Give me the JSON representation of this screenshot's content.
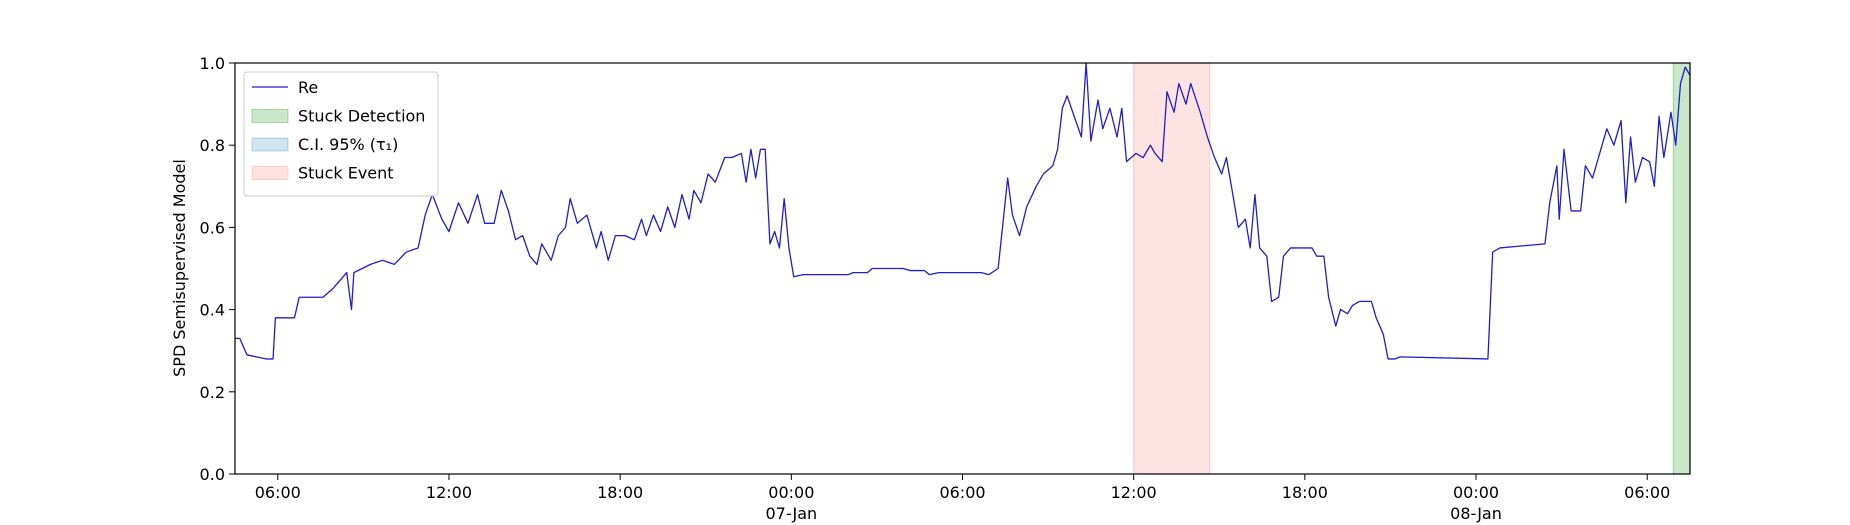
{
  "chart_data": {
    "type": "line",
    "ylabel": "SPD Semisupervised Model",
    "xlim": [
      "1900-01-06 04:30",
      "1900-01-08 07:30"
    ],
    "xticks": [
      {
        "value": "1900-01-06 06:00",
        "label": "06:00"
      },
      {
        "value": "1900-01-06 12:00",
        "label": "12:00"
      },
      {
        "value": "1900-01-06 18:00",
        "label": "18:00"
      },
      {
        "value": "1900-01-07 00:00",
        "label": "00:00\n07-Jan\n1900"
      },
      {
        "value": "1900-01-07 06:00",
        "label": "06:00"
      },
      {
        "value": "1900-01-07 12:00",
        "label": "12:00"
      },
      {
        "value": "1900-01-07 18:00",
        "label": "18:00"
      },
      {
        "value": "1900-01-08 00:00",
        "label": "00:00\n08-Jan"
      },
      {
        "value": "1900-01-08 06:00",
        "label": "06:00"
      }
    ],
    "ylim": [
      0,
      1
    ],
    "yticks": [
      {
        "value": 0,
        "label": "0.0"
      },
      0.2,
      0.4,
      0.6,
      0.8,
      {
        "value": 1,
        "label": "1.0"
      }
    ],
    "legend": "upper left",
    "regions": [
      {
        "name": "Stuck Detection",
        "color": "#2ca02c",
        "alpha": 0.25,
        "spans": [
          [
            "1900-01-08 06:55",
            "1900-01-08 07:30"
          ]
        ]
      },
      {
        "name": "C.I. 95% (τ₁)",
        "color": "#1f77b4",
        "alpha": 0.2,
        "spans": []
      },
      {
        "name": "Stuck Event",
        "color": "#ff0000",
        "alpha": 0.11,
        "spans": [
          [
            "1900-01-07 12:00",
            "1900-01-07 14:40"
          ]
        ]
      }
    ],
    "x": [
      "1900-01-06 04:30",
      "1900-01-06 04:40",
      "1900-01-06 04:55",
      "1900-01-06 05:15",
      "1900-01-06 05:35",
      "1900-01-06 05:50",
      "1900-01-06 05:55",
      "1900-01-06 06:35",
      "1900-01-06 06:45",
      "1900-01-06 07:05",
      "1900-01-06 07:35",
      "1900-01-06 07:55",
      "1900-01-06 08:25",
      "1900-01-06 08:35",
      "1900-01-06 08:40",
      "1900-01-06 09:15",
      "1900-01-06 09:40",
      "1900-01-06 10:05",
      "1900-01-06 10:30",
      "1900-01-06 10:55",
      "1900-01-06 11:10",
      "1900-01-06 11:25",
      "1900-01-06 11:45",
      "1900-01-06 12:00",
      "1900-01-06 12:20",
      "1900-01-06 12:40",
      "1900-01-06 13:00",
      "1900-01-06 13:15",
      "1900-01-06 13:35",
      "1900-01-06 13:50",
      "1900-01-06 14:05",
      "1900-01-06 14:20",
      "1900-01-06 14:35",
      "1900-01-06 14:50",
      "1900-01-06 15:05",
      "1900-01-06 15:15",
      "1900-01-06 15:35",
      "1900-01-06 15:50",
      "1900-01-06 16:05",
      "1900-01-06 16:15",
      "1900-01-06 16:30",
      "1900-01-06 16:50",
      "1900-01-06 17:10",
      "1900-01-06 17:20",
      "1900-01-06 17:35",
      "1900-01-06 17:50",
      "1900-01-06 18:10",
      "1900-01-06 18:30",
      "1900-01-06 18:45",
      "1900-01-06 18:55",
      "1900-01-06 19:10",
      "1900-01-06 19:25",
      "1900-01-06 19:40",
      "1900-01-06 19:55",
      "1900-01-06 20:10",
      "1900-01-06 20:25",
      "1900-01-06 20:35",
      "1900-01-06 20:50",
      "1900-01-06 21:05",
      "1900-01-06 21:20",
      "1900-01-06 21:40",
      "1900-01-06 21:55",
      "1900-01-06 22:15",
      "1900-01-06 22:25",
      "1900-01-06 22:35",
      "1900-01-06 22:45",
      "1900-01-06 22:55",
      "1900-01-06 23:05",
      "1900-01-06 23:15",
      "1900-01-06 23:25",
      "1900-01-06 23:35",
      "1900-01-06 23:45",
      "1900-01-06 23:55",
      "1900-01-07 00:05",
      "1900-01-07 00:25",
      "1900-01-07 02:00",
      "1900-01-07 02:10",
      "1900-01-07 02:40",
      "1900-01-07 02:50",
      "1900-01-07 03:55",
      "1900-01-07 04:10",
      "1900-01-07 04:40",
      "1900-01-07 04:50",
      "1900-01-07 05:10",
      "1900-01-07 06:40",
      "1900-01-07 06:55",
      "1900-01-07 07:15",
      "1900-01-07 07:25",
      "1900-01-07 07:35",
      "1900-01-07 07:45",
      "1900-01-07 08:00",
      "1900-01-07 08:15",
      "1900-01-07 08:35",
      "1900-01-07 08:50",
      "1900-01-07 09:10",
      "1900-01-07 09:20",
      "1900-01-07 09:30",
      "1900-01-07 09:40",
      "1900-01-07 09:55",
      "1900-01-07 10:10",
      "1900-01-07 10:20",
      "1900-01-07 10:30",
      "1900-01-07 10:45",
      "1900-01-07 10:55",
      "1900-01-07 11:10",
      "1900-01-07 11:25",
      "1900-01-07 11:35",
      "1900-01-07 11:45",
      "1900-01-07 12:05",
      "1900-01-07 12:20",
      "1900-01-07 12:35",
      "1900-01-07 12:45",
      "1900-01-07 13:00",
      "1900-01-07 13:10",
      "1900-01-07 13:25",
      "1900-01-07 13:35",
      "1900-01-07 13:50",
      "1900-01-07 14:00",
      "1900-01-07 14:20",
      "1900-01-07 14:35",
      "1900-01-07 14:50",
      "1900-01-07 15:05",
      "1900-01-07 15:15",
      "1900-01-07 15:30",
      "1900-01-07 15:40",
      "1900-01-07 15:55",
      "1900-01-07 16:05",
      "1900-01-07 16:15",
      "1900-01-07 16:25",
      "1900-01-07 16:40",
      "1900-01-07 16:50",
      "1900-01-07 17:05",
      "1900-01-07 17:15",
      "1900-01-07 17:30",
      "1900-01-07 18:15",
      "1900-01-07 18:25",
      "1900-01-07 18:40",
      "1900-01-07 18:50",
      "1900-01-07 19:05",
      "1900-01-07 19:15",
      "1900-01-07 19:30",
      "1900-01-07 19:40",
      "1900-01-07 19:55",
      "1900-01-07 20:20",
      "1900-01-07 20:30",
      "1900-01-07 20:45",
      "1900-01-07 20:55",
      "1900-01-07 21:10",
      "1900-01-07 21:20",
      "1900-01-08 00:25",
      "1900-01-08 00:35",
      "1900-01-08 00:50",
      "1900-01-08 02:25",
      "1900-01-08 02:35",
      "1900-01-08 02:50",
      "1900-01-08 02:55",
      "1900-01-08 03:05",
      "1900-01-08 03:20",
      "1900-01-08 03:40",
      "1900-01-08 03:50",
      "1900-01-08 04:05",
      "1900-01-08 04:20",
      "1900-01-08 04:35",
      "1900-01-08 04:50",
      "1900-01-08 05:05",
      "1900-01-08 05:15",
      "1900-01-08 05:25",
      "1900-01-08 05:35",
      "1900-01-08 05:50",
      "1900-01-08 06:05",
      "1900-01-08 06:15",
      "1900-01-08 06:25",
      "1900-01-08 06:35",
      "1900-01-08 06:50",
      "1900-01-08 07:00",
      "1900-01-08 07:10",
      "1900-01-08 07:20",
      "1900-01-08 07:30"
    ],
    "series": [
      {
        "name": "Re",
        "color": "#1f1fcc",
        "values": [
          0.33,
          0.33,
          0.29,
          0.285,
          0.28,
          0.28,
          0.38,
          0.38,
          0.43,
          0.43,
          0.43,
          0.45,
          0.49,
          0.4,
          0.49,
          0.51,
          0.52,
          0.51,
          0.54,
          0.55,
          0.63,
          0.68,
          0.62,
          0.59,
          0.66,
          0.61,
          0.68,
          0.61,
          0.61,
          0.69,
          0.64,
          0.57,
          0.58,
          0.53,
          0.51,
          0.56,
          0.52,
          0.58,
          0.6,
          0.67,
          0.61,
          0.63,
          0.55,
          0.59,
          0.52,
          0.58,
          0.58,
          0.57,
          0.62,
          0.58,
          0.63,
          0.59,
          0.65,
          0.6,
          0.68,
          0.62,
          0.69,
          0.66,
          0.73,
          0.71,
          0.77,
          0.77,
          0.78,
          0.71,
          0.79,
          0.72,
          0.79,
          0.79,
          0.56,
          0.59,
          0.55,
          0.67,
          0.55,
          0.48,
          0.485,
          0.485,
          0.49,
          0.49,
          0.5,
          0.5,
          0.495,
          0.495,
          0.485,
          0.49,
          0.49,
          0.485,
          0.5,
          0.61,
          0.72,
          0.63,
          0.58,
          0.65,
          0.7,
          0.73,
          0.75,
          0.79,
          0.89,
          0.92,
          0.87,
          0.82,
          1.0,
          0.81,
          0.91,
          0.84,
          0.89,
          0.82,
          0.89,
          0.76,
          0.78,
          0.77,
          0.8,
          0.78,
          0.76,
          0.93,
          0.88,
          0.95,
          0.9,
          0.95,
          0.88,
          0.82,
          0.77,
          0.73,
          0.77,
          0.67,
          0.6,
          0.62,
          0.55,
          0.68,
          0.55,
          0.53,
          0.42,
          0.43,
          0.53,
          0.55,
          0.55,
          0.53,
          0.53,
          0.43,
          0.36,
          0.4,
          0.39,
          0.41,
          0.42,
          0.42,
          0.38,
          0.34,
          0.28,
          0.28,
          0.285,
          0.28,
          0.54,
          0.55,
          0.56,
          0.66,
          0.75,
          0.62,
          0.79,
          0.64,
          0.64,
          0.75,
          0.72,
          0.78,
          0.84,
          0.8,
          0.86,
          0.66,
          0.82,
          0.71,
          0.77,
          0.76,
          0.7,
          0.87,
          0.77,
          0.88,
          0.8,
          0.95,
          0.99,
          0.97
        ]
      }
    ]
  }
}
